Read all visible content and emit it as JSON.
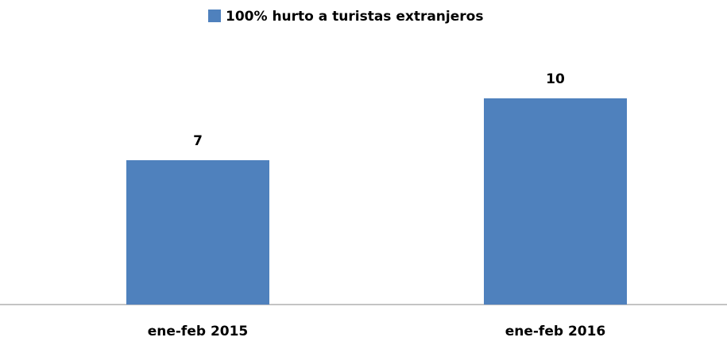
{
  "chart_data": {
    "type": "bar",
    "categories": [
      "ene-feb 2015",
      "ene-feb 2016"
    ],
    "series": [
      {
        "name": "100% hurto a turistas extranjeros",
        "color": "#4f81bd",
        "values": [
          7,
          10
        ]
      }
    ],
    "ylim": [
      0,
      12
    ],
    "legend": "top",
    "data_labels": true
  }
}
